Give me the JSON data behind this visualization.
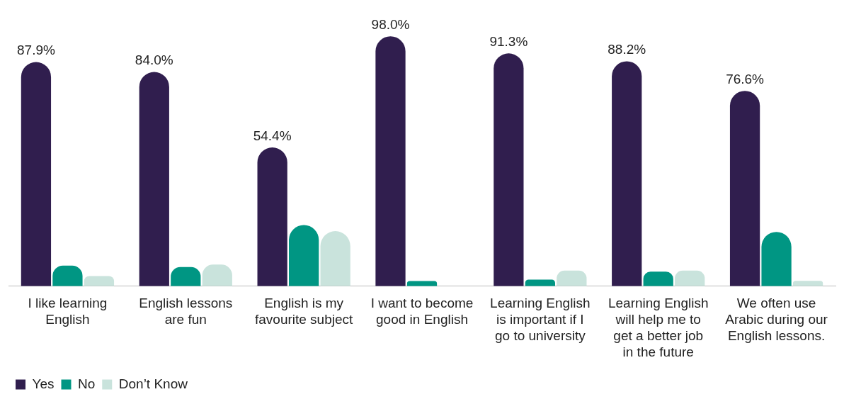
{
  "chart_data": {
    "type": "bar",
    "categories": [
      "I like learning English",
      "English lessons are fun",
      "English is my favourite subject",
      "I want to become good in English",
      "Learning English is important if I go to university",
      "Learning English will help me to get a better job in the future",
      "We often use Arabic during our English lessons."
    ],
    "series": [
      {
        "name": "Yes",
        "color": "#301e4e",
        "values": [
          87.9,
          84.0,
          54.4,
          98.0,
          91.3,
          88.2,
          76.6
        ],
        "value_labels": [
          "87.9%",
          "84.0%",
          "54.4%",
          "98.0%",
          "91.3%",
          "88.2%",
          "76.6%"
        ]
      },
      {
        "name": "No",
        "color": "#009683",
        "values": [
          8.1,
          7.5,
          24.0,
          2.0,
          2.6,
          5.7,
          21.3
        ]
      },
      {
        "name": "Don’t Know",
        "color": "#c9e3dc",
        "values": [
          4.0,
          8.5,
          21.6,
          0,
          6.1,
          6.1,
          2.1
        ]
      }
    ],
    "legend": "bottom left",
    "grid": false
  }
}
